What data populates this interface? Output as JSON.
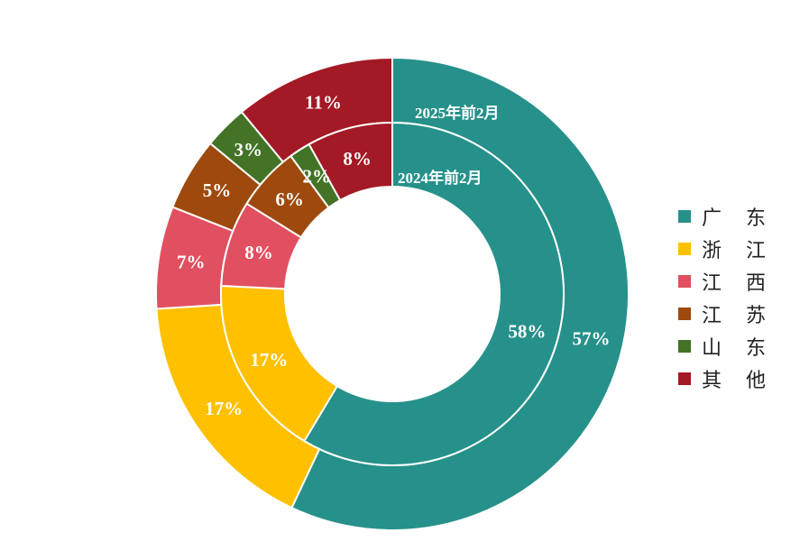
{
  "chart_data": {
    "type": "pie",
    "categories": [
      "广东",
      "浙江",
      "江西",
      "江苏",
      "山东",
      "其他"
    ],
    "colors": [
      "#26918A",
      "#FFC000",
      "#E15060",
      "#9E4A0E",
      "#437327",
      "#A31925"
    ],
    "series": [
      {
        "name": "2025年前2月",
        "values": [
          57,
          17,
          7,
          5,
          3,
          11
        ],
        "labels": [
          "57%",
          "17%",
          "7%",
          "5%",
          "3%",
          "11%"
        ]
      },
      {
        "name": "2024年前2月",
        "values": [
          58,
          17,
          8,
          6,
          2,
          8
        ],
        "labels": [
          "58%",
          "17%",
          "8%",
          "6%",
          "2%",
          "8%"
        ]
      }
    ],
    "legend": {
      "position": "right",
      "entries": [
        "广 东",
        "浙 江",
        "江 西",
        "江 苏",
        "山 东",
        "其 他"
      ]
    }
  }
}
